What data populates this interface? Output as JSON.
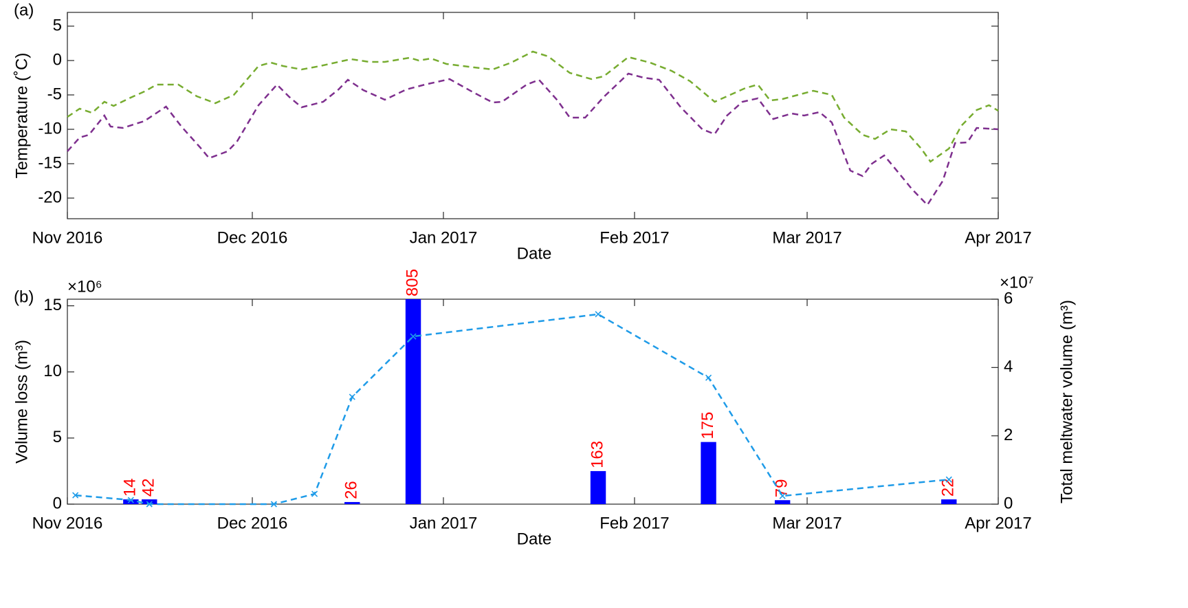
{
  "chart_data": [
    {
      "type": "line",
      "panel_label": "(a)",
      "xlabel": "Date",
      "ylabel": "Temperature (˚C)",
      "xlim": [
        0,
        151
      ],
      "xticks": [
        {
          "value": 0,
          "label": "Nov 2016"
        },
        {
          "value": 30,
          "label": "Dec 2016"
        },
        {
          "value": 61,
          "label": "Jan 2017"
        },
        {
          "value": 92,
          "label": "Feb 2017"
        },
        {
          "value": 120,
          "label": "Mar 2017"
        },
        {
          "value": 151,
          "label": "Apr 2017"
        }
      ],
      "ylim": [
        -23,
        7
      ],
      "yticks": [
        -20,
        -15,
        -10,
        -5,
        0,
        5
      ],
      "series": [
        {
          "color": "#77ac30",
          "x": [
            0,
            2,
            4,
            6,
            7.5,
            10,
            12.5,
            14.5,
            18,
            21,
            24,
            27,
            31,
            33,
            35,
            38,
            41,
            44,
            46,
            49,
            51.5,
            55.5,
            57,
            59,
            61.5,
            66,
            69,
            72,
            75.5,
            78,
            81.5,
            85,
            87,
            91,
            94.5,
            98,
            101,
            105,
            108,
            110,
            112,
            114,
            116,
            118.5,
            121,
            124,
            126,
            129,
            131,
            133.5,
            136,
            138.5,
            140,
            143,
            145,
            147.5,
            149.5,
            151
          ],
          "values": [
            -8.2,
            -7,
            -7.6,
            -6,
            -6.6,
            -5.5,
            -4.5,
            -3.5,
            -3.5,
            -5.2,
            -6.2,
            -5,
            -0.8,
            -0.3,
            -0.8,
            -1.3,
            -0.8,
            -0.2,
            0.2,
            -0.2,
            -0.2,
            0.4,
            0,
            0.3,
            -0.5,
            -1,
            -1.3,
            -0.3,
            1.3,
            0.6,
            -1.8,
            -2.7,
            -2.3,
            0.5,
            -0.3,
            -1.5,
            -3,
            -6,
            -4.8,
            -4,
            -3.5,
            -5.8,
            -5.6,
            -5,
            -4.4,
            -5,
            -8.3,
            -10.8,
            -11.4,
            -10,
            -10.3,
            -12.8,
            -14.7,
            -12.8,
            -9.5,
            -7.2,
            -6.5,
            -7.3
          ]
        },
        {
          "color": "#7e2f8e",
          "x": [
            0,
            2,
            3.5,
            6,
            7,
            9,
            12.5,
            16,
            18.5,
            21.5,
            23,
            26,
            27.5,
            31,
            34,
            36,
            38,
            41.5,
            44,
            45.5,
            48,
            51.5,
            55,
            58,
            62,
            66,
            69,
            70.5,
            74.5,
            76.5,
            79.5,
            81.5,
            84,
            87,
            91,
            93.5,
            96,
            99.5,
            103,
            105,
            107,
            109.5,
            112,
            114.5,
            117.5,
            119.5,
            122,
            124,
            127,
            129,
            130.5,
            132.5,
            135,
            137,
            139.5,
            142,
            144,
            146,
            147.5,
            151
          ],
          "values": [
            -13.2,
            -11.2,
            -10.8,
            -8,
            -9.6,
            -9.8,
            -8.8,
            -6.7,
            -9.6,
            -12.6,
            -14.2,
            -13.2,
            -11.8,
            -6.5,
            -3.5,
            -5.3,
            -6.8,
            -6,
            -4.2,
            -2.8,
            -4.3,
            -5.7,
            -4.2,
            -3.5,
            -2.7,
            -4.7,
            -6.1,
            -6,
            -3.5,
            -2.8,
            -5.8,
            -8.3,
            -8.3,
            -5.3,
            -1.9,
            -2.5,
            -2.8,
            -6.8,
            -10,
            -10.7,
            -8,
            -6,
            -5.5,
            -8.5,
            -7.7,
            -8,
            -7.5,
            -9,
            -16,
            -16.8,
            -15,
            -13.8,
            -16.5,
            -18.7,
            -21,
            -17.5,
            -12,
            -11.9,
            -9.8,
            -10
          ]
        }
      ]
    },
    {
      "type": "bar",
      "panel_label": "(b)",
      "xlabel": "Date",
      "ylabel": "Volume loss (m³)",
      "y2label": "Total meltwater volume (m³)",
      "y_multiplier": "×10⁶",
      "y2_multiplier": "×10⁷",
      "xlim": [
        0,
        151
      ],
      "xticks": [
        {
          "value": 0,
          "label": "Nov 2016"
        },
        {
          "value": 30,
          "label": "Dec 2016"
        },
        {
          "value": 61,
          "label": "Jan 2017"
        },
        {
          "value": 92,
          "label": "Feb 2017"
        },
        {
          "value": 120,
          "label": "Mar 2017"
        },
        {
          "value": 151,
          "label": "Apr 2017"
        }
      ],
      "ylim": [
        0,
        15.5
      ],
      "yticks": [
        0,
        5,
        10,
        15
      ],
      "y2lim": [
        0,
        6
      ],
      "y2ticks": [
        0,
        2,
        4,
        6
      ],
      "series": [
        {
          "type": "bar",
          "color": "#0000ff",
          "label_color": "#ff0000",
          "x": [
            10.3,
            13.3,
            46.2,
            56.1,
            86.1,
            104,
            116,
            143
          ],
          "values": [
            0.36,
            0.36,
            0.16,
            15.5,
            2.5,
            4.7,
            0.3,
            0.36
          ],
          "labels": [
            "14",
            "42",
            "26",
            "805",
            "163",
            "175",
            "79",
            "22"
          ]
        },
        {
          "type": "line",
          "axis": "y2",
          "color": "#1e9be8",
          "x": [
            1.3,
            10.3,
            13.3,
            33.5,
            40.1,
            46.2,
            56.1,
            86.1,
            104,
            116,
            143
          ],
          "values": [
            0.26,
            0.12,
            0,
            0,
            0.3,
            3.14,
            4.91,
            5.56,
            3.7,
            0.24,
            0.72
          ]
        }
      ]
    }
  ]
}
